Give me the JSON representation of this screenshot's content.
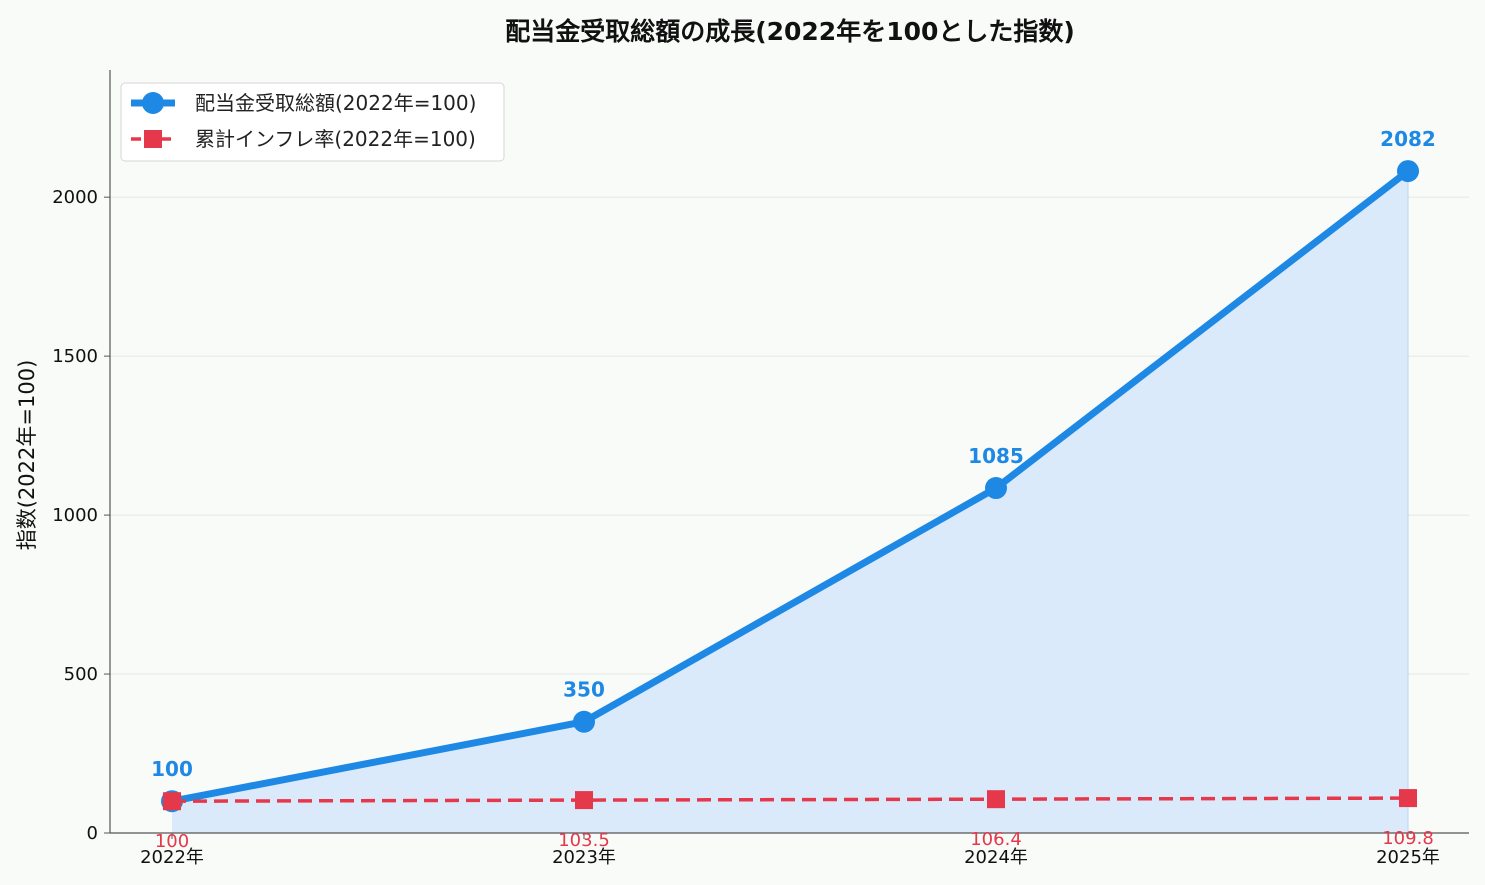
{
  "chart_data": {
    "type": "line",
    "title": "配当金受取総額の成長(2022年を100とした指数)",
    "ylabel": "指数(2022年=100)",
    "categories": [
      "2022年",
      "2023年",
      "2024年",
      "2025年"
    ],
    "ylim": [
      0,
      2400
    ],
    "yticks": [
      0,
      500,
      1000,
      1500,
      2000
    ],
    "grid": "horizontal",
    "legend_position": "top-left",
    "series": [
      {
        "name": "配当金受取総額(2022年=100)",
        "values": [
          100,
          350,
          1085,
          2082
        ],
        "labels": [
          "100",
          "350",
          "1085",
          "2082"
        ],
        "color": "#1e88e5",
        "fill_color": "#dbeafa",
        "marker": "circle",
        "line_style": "solid",
        "area_fill": true
      },
      {
        "name": "累計インフレ率(2022年=100)",
        "values": [
          100,
          103.5,
          106.4,
          109.8
        ],
        "labels": [
          "100",
          "103.5",
          "106.4",
          "109.8"
        ],
        "color": "#e5384a",
        "marker": "square",
        "line_style": "dashed",
        "area_fill": false
      }
    ]
  }
}
